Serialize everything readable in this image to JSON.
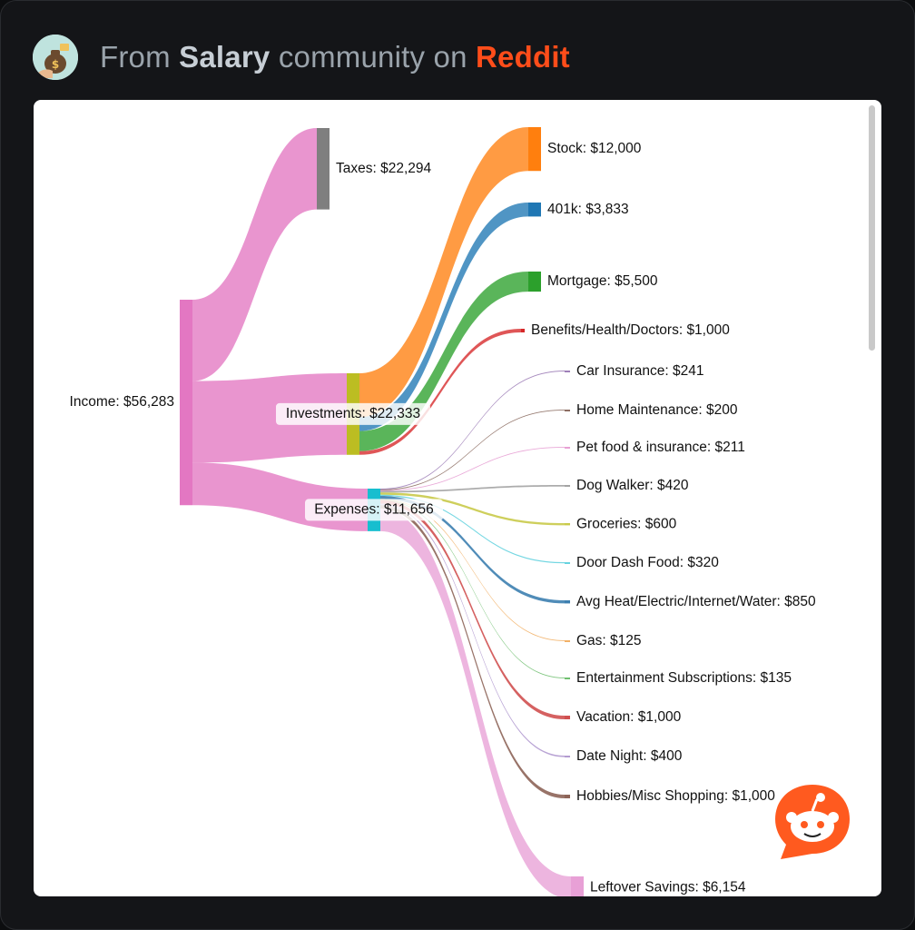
{
  "header": {
    "prefix": "From",
    "community": "Salary",
    "middle": "community on",
    "site": "Reddit"
  },
  "colors": {
    "income": "#e377c2",
    "taxes": "#7f7f7f",
    "investments": "#bcbd22",
    "expenses": "#17becf",
    "stock": "#ff7f0e",
    "k401": "#1f77b4",
    "mortgage": "#2ca02c",
    "benefits": "#d62728",
    "reddit": "#ff4d1a"
  },
  "chart_data": {
    "type": "sankey",
    "nodes": [
      {
        "id": "income",
        "label": "Income: $56,283",
        "value": 56283
      },
      {
        "id": "taxes",
        "label": "Taxes: $22,294",
        "value": 22294
      },
      {
        "id": "investments",
        "label": "Investments: $22,333",
        "value": 22333
      },
      {
        "id": "expenses",
        "label": "Expenses: $11,656",
        "value": 11656
      },
      {
        "id": "stock",
        "label": "Stock: $12,000",
        "value": 12000
      },
      {
        "id": "401k",
        "label": "401k: $3,833",
        "value": 3833
      },
      {
        "id": "mortgage",
        "label": "Mortgage: $5,500",
        "value": 5500
      },
      {
        "id": "benefits",
        "label": "Benefits/Health/Doctors: $1,000",
        "value": 1000
      },
      {
        "id": "car",
        "label": "Car Insurance: $241",
        "value": 241
      },
      {
        "id": "home",
        "label": "Home Maintenance: $200",
        "value": 200
      },
      {
        "id": "pet",
        "label": "Pet food & insurance: $211",
        "value": 211
      },
      {
        "id": "dog",
        "label": "Dog Walker: $420",
        "value": 420
      },
      {
        "id": "groceries",
        "label": "Groceries: $600",
        "value": 600
      },
      {
        "id": "doordash",
        "label": "Door Dash Food: $320",
        "value": 320
      },
      {
        "id": "utilities",
        "label": "Avg Heat/Electric/Internet/Water: $850",
        "value": 850
      },
      {
        "id": "gas",
        "label": "Gas: $125",
        "value": 125
      },
      {
        "id": "subs",
        "label": "Entertainment Subscriptions: $135",
        "value": 135
      },
      {
        "id": "vacation",
        "label": "Vacation: $1,000",
        "value": 1000
      },
      {
        "id": "date",
        "label": "Date Night: $400",
        "value": 400
      },
      {
        "id": "hobbies",
        "label": "Hobbies/Misc Shopping: $1,000",
        "value": 1000
      },
      {
        "id": "leftover",
        "label": "Leftover Savings: $6,154",
        "value": 6154
      }
    ],
    "links": [
      {
        "source": "income",
        "target": "taxes",
        "value": 22294
      },
      {
        "source": "income",
        "target": "investments",
        "value": 22333
      },
      {
        "source": "income",
        "target": "expenses",
        "value": 11656
      },
      {
        "source": "investments",
        "target": "stock",
        "value": 12000
      },
      {
        "source": "investments",
        "target": "401k",
        "value": 3833
      },
      {
        "source": "investments",
        "target": "mortgage",
        "value": 5500
      },
      {
        "source": "investments",
        "target": "benefits",
        "value": 1000
      },
      {
        "source": "expenses",
        "target": "car",
        "value": 241
      },
      {
        "source": "expenses",
        "target": "home",
        "value": 200
      },
      {
        "source": "expenses",
        "target": "pet",
        "value": 211
      },
      {
        "source": "expenses",
        "target": "dog",
        "value": 420
      },
      {
        "source": "expenses",
        "target": "groceries",
        "value": 600
      },
      {
        "source": "expenses",
        "target": "doordash",
        "value": 320
      },
      {
        "source": "expenses",
        "target": "utilities",
        "value": 850
      },
      {
        "source": "expenses",
        "target": "gas",
        "value": 125
      },
      {
        "source": "expenses",
        "target": "subs",
        "value": 135
      },
      {
        "source": "expenses",
        "target": "vacation",
        "value": 1000
      },
      {
        "source": "expenses",
        "target": "date",
        "value": 400
      },
      {
        "source": "expenses",
        "target": "hobbies",
        "value": 1000
      },
      {
        "source": "expenses",
        "target": "leftover",
        "value": 6154
      }
    ],
    "link_colors": {
      "car": "#9e7fb8",
      "home": "#8c6d62",
      "pet": "#e7a0d4",
      "dog": "#a3a3a3",
      "groceries": "#c9ca4a",
      "doordash": "#66d3df",
      "utilities": "#3d7fb0",
      "gas": "#f2b066",
      "subs": "#6fbf6f",
      "vacation": "#d05050",
      "date": "#b39bd0",
      "hobbies": "#8d6458",
      "leftover": "#e8a0d6"
    }
  }
}
